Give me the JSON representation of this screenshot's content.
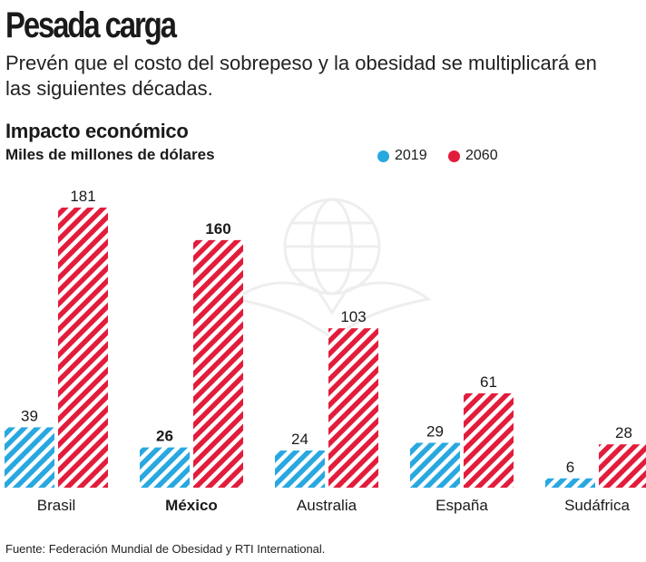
{
  "header": {
    "title": "Pesada carga",
    "subtitle": "Prevén que el costo del sobrepeso y la obesidad se multiplicará en las siguientes décadas.",
    "section": "Impacto económico",
    "units": "Miles de millones de dólares"
  },
  "colors": {
    "series_2019": "#29a8e0",
    "series_2060": "#e21d3c"
  },
  "chart_data": {
    "type": "bar",
    "title": "Impacto económico",
    "ylabel": "Miles de millones de dólares",
    "xlabel": "",
    "categories": [
      "Brasil",
      "México",
      "Australia",
      "España",
      "Sudáfrica"
    ],
    "highlight": "México",
    "series": [
      {
        "name": "2019",
        "values": [
          39,
          26,
          24,
          29,
          6
        ]
      },
      {
        "name": "2060",
        "values": [
          181,
          160,
          103,
          61,
          28
        ]
      }
    ],
    "ylim": [
      0,
      181
    ]
  },
  "footer": {
    "source": "Fuente: Federación Mundial de Obesidad y RTI International."
  }
}
